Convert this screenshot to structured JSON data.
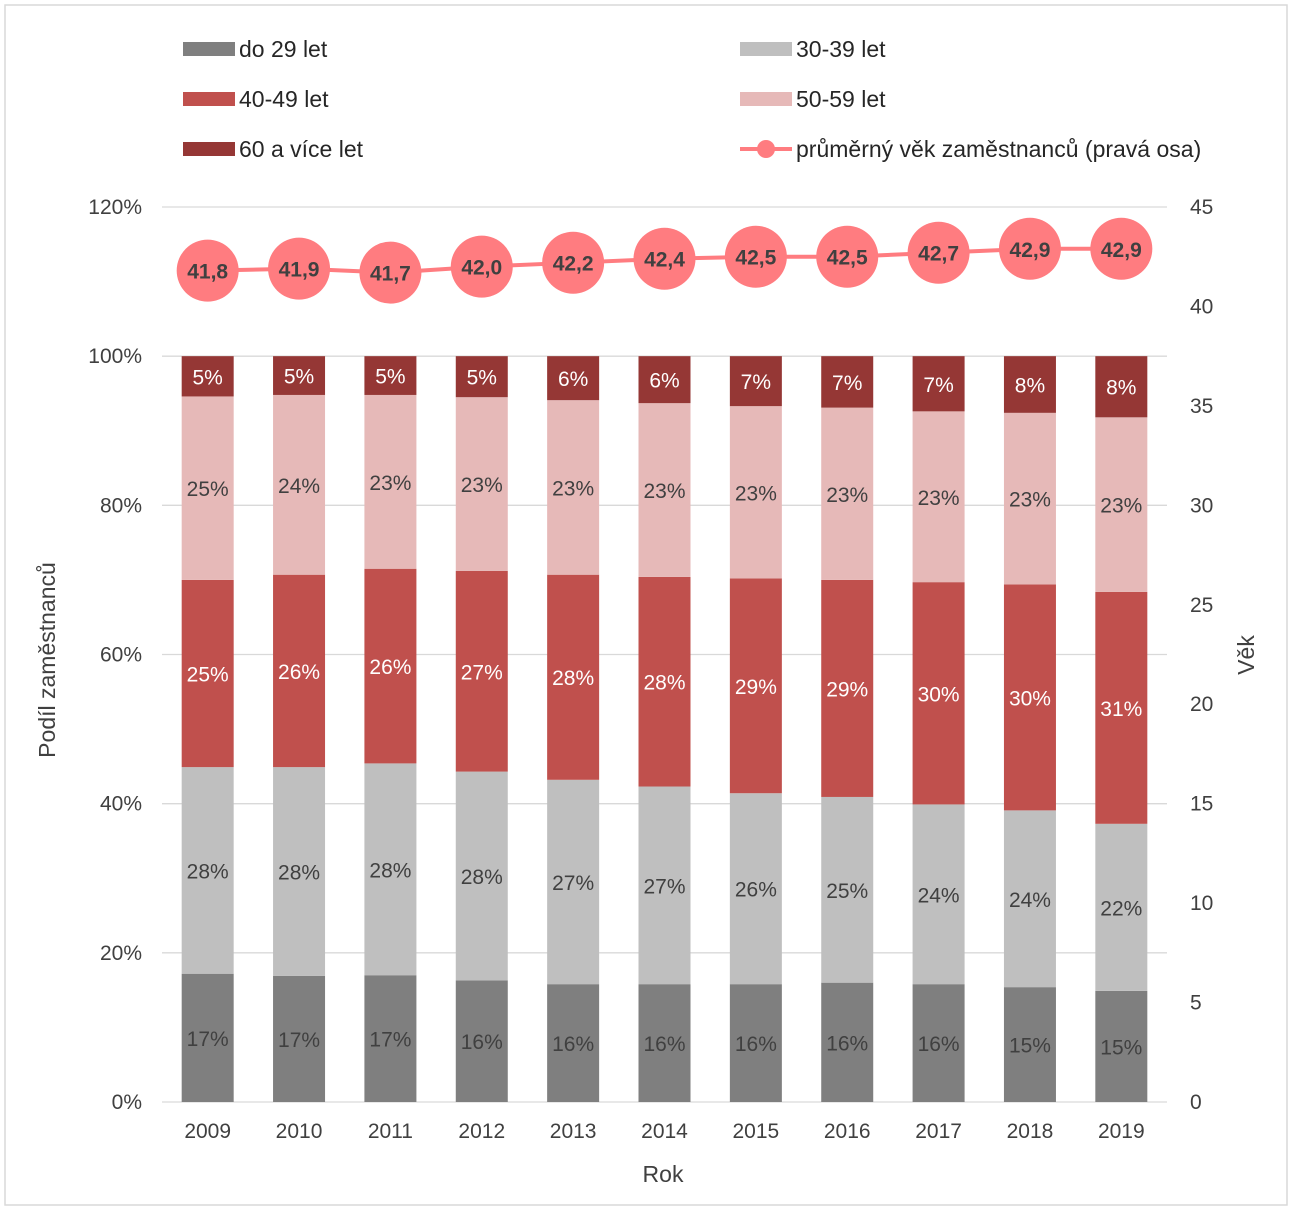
{
  "chart_data": {
    "type": "bar",
    "stacked": true,
    "categories": [
      "2009",
      "2010",
      "2011",
      "2012",
      "2013",
      "2014",
      "2015",
      "2016",
      "2017",
      "2018",
      "2019"
    ],
    "series": [
      {
        "name": "do 29 let",
        "color": "#7f7f7f",
        "label_color": "#404040",
        "values": [
          17.2,
          16.9,
          17.0,
          16.3,
          15.8,
          15.8,
          15.8,
          16.0,
          15.8,
          15.4,
          14.9
        ],
        "labels": [
          "17%",
          "17%",
          "17%",
          "16%",
          "16%",
          "16%",
          "16%",
          "16%",
          "16%",
          "15%",
          "15%"
        ]
      },
      {
        "name": "30-39 let",
        "color": "#bfbfbf",
        "label_color": "#404040",
        "values": [
          27.7,
          28.0,
          28.4,
          28.0,
          27.4,
          26.5,
          25.6,
          24.9,
          24.1,
          23.7,
          22.4
        ],
        "labels": [
          "28%",
          "28%",
          "28%",
          "28%",
          "27%",
          "27%",
          "26%",
          "25%",
          "24%",
          "24%",
          "22%"
        ]
      },
      {
        "name": "40-49 let",
        "color": "#c0504d",
        "label_color": "#ffffff",
        "values": [
          25.1,
          25.8,
          26.1,
          26.9,
          27.5,
          28.1,
          28.8,
          29.1,
          29.8,
          30.3,
          31.1
        ],
        "labels": [
          "25%",
          "26%",
          "26%",
          "27%",
          "28%",
          "28%",
          "29%",
          "29%",
          "30%",
          "30%",
          "31%"
        ]
      },
      {
        "name": "50-59 let",
        "color": "#e6b9b8",
        "label_color": "#404040",
        "values": [
          24.6,
          24.1,
          23.3,
          23.3,
          23.4,
          23.3,
          23.1,
          23.1,
          22.9,
          23.0,
          23.4
        ],
        "labels": [
          "25%",
          "24%",
          "23%",
          "23%",
          "23%",
          "23%",
          "23%",
          "23%",
          "23%",
          "23%",
          "23%"
        ]
      },
      {
        "name": "60 a více let",
        "color": "#953735",
        "label_color": "#ffffff",
        "values": [
          5.4,
          5.2,
          5.2,
          5.5,
          5.9,
          6.3,
          6.7,
          6.9,
          7.4,
          7.6,
          8.2
        ],
        "labels": [
          "5%",
          "5%",
          "5%",
          "5%",
          "6%",
          "6%",
          "7%",
          "7%",
          "7%",
          "8%",
          "8%"
        ]
      }
    ],
    "line_series": {
      "name": "průměrný věk zaměstnanců (pravá osa)",
      "color": "#ff7c80",
      "axis": "right",
      "values": [
        41.8,
        41.9,
        41.7,
        42.0,
        42.2,
        42.4,
        42.5,
        42.5,
        42.7,
        42.9,
        42.9
      ],
      "labels": [
        "41,8",
        "41,9",
        "41,7",
        "42,0",
        "42,2",
        "42,4",
        "42,5",
        "42,5",
        "42,7",
        "42,9",
        "42,9"
      ]
    },
    "xlabel": "Rok",
    "ylabel": "Podíl zaměstnanců",
    "y2label": "Věk",
    "ylim": [
      0,
      120
    ],
    "y2lim": [
      0,
      45
    ],
    "yticks": [
      "0%",
      "20%",
      "40%",
      "60%",
      "80%",
      "100%",
      "120%"
    ],
    "y2ticks": [
      "0",
      "5",
      "10",
      "15",
      "20",
      "25",
      "30",
      "35",
      "40",
      "45"
    ],
    "legend_position": "top",
    "grid": true
  }
}
